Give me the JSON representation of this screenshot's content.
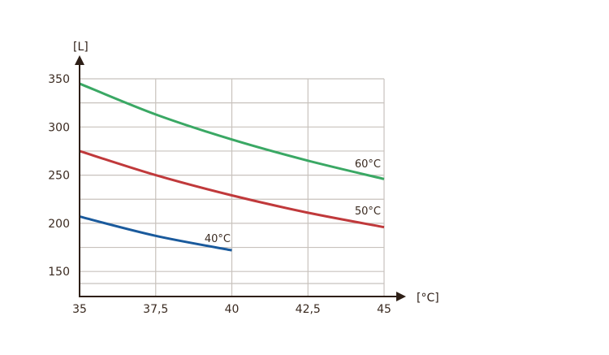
{
  "chart_data": {
    "type": "line",
    "title": "",
    "xlabel": "[°C]",
    "ylabel": "[L]",
    "x_ticks": [
      "35",
      "37,5",
      "40",
      "42,5",
      "45"
    ],
    "x_tick_values": [
      35,
      37.5,
      40,
      42.5,
      45
    ],
    "y_ticks": [
      "150",
      "200",
      "250",
      "300",
      "350"
    ],
    "y_tick_values": [
      150,
      200,
      250,
      300,
      350
    ],
    "xlim": [
      35,
      45
    ],
    "ylim": [
      124,
      350
    ],
    "grid": true,
    "grid_minor_y_step": 25,
    "legend_position": "inline labels at line ends",
    "series": [
      {
        "name": "60°C",
        "color": "#3aa864",
        "x": [
          35,
          37.5,
          40,
          42.5,
          45
        ],
        "values": [
          345,
          313,
          287,
          265,
          246
        ]
      },
      {
        "name": "50°C",
        "color": "#c0393b",
        "x": [
          35,
          37.5,
          40,
          42.5,
          45
        ],
        "values": [
          275,
          250,
          229,
          211,
          196
        ]
      },
      {
        "name": "40°C",
        "color": "#1a5a9c",
        "x": [
          35,
          37.5,
          40
        ],
        "values": [
          207,
          187,
          172
        ]
      }
    ]
  },
  "axes": {
    "y_unit": "[L]",
    "x_unit": "[°C]"
  },
  "colors": {
    "axis": "#2e1f17",
    "grid": "#c8c2bd",
    "text": "#3a2a20"
  }
}
